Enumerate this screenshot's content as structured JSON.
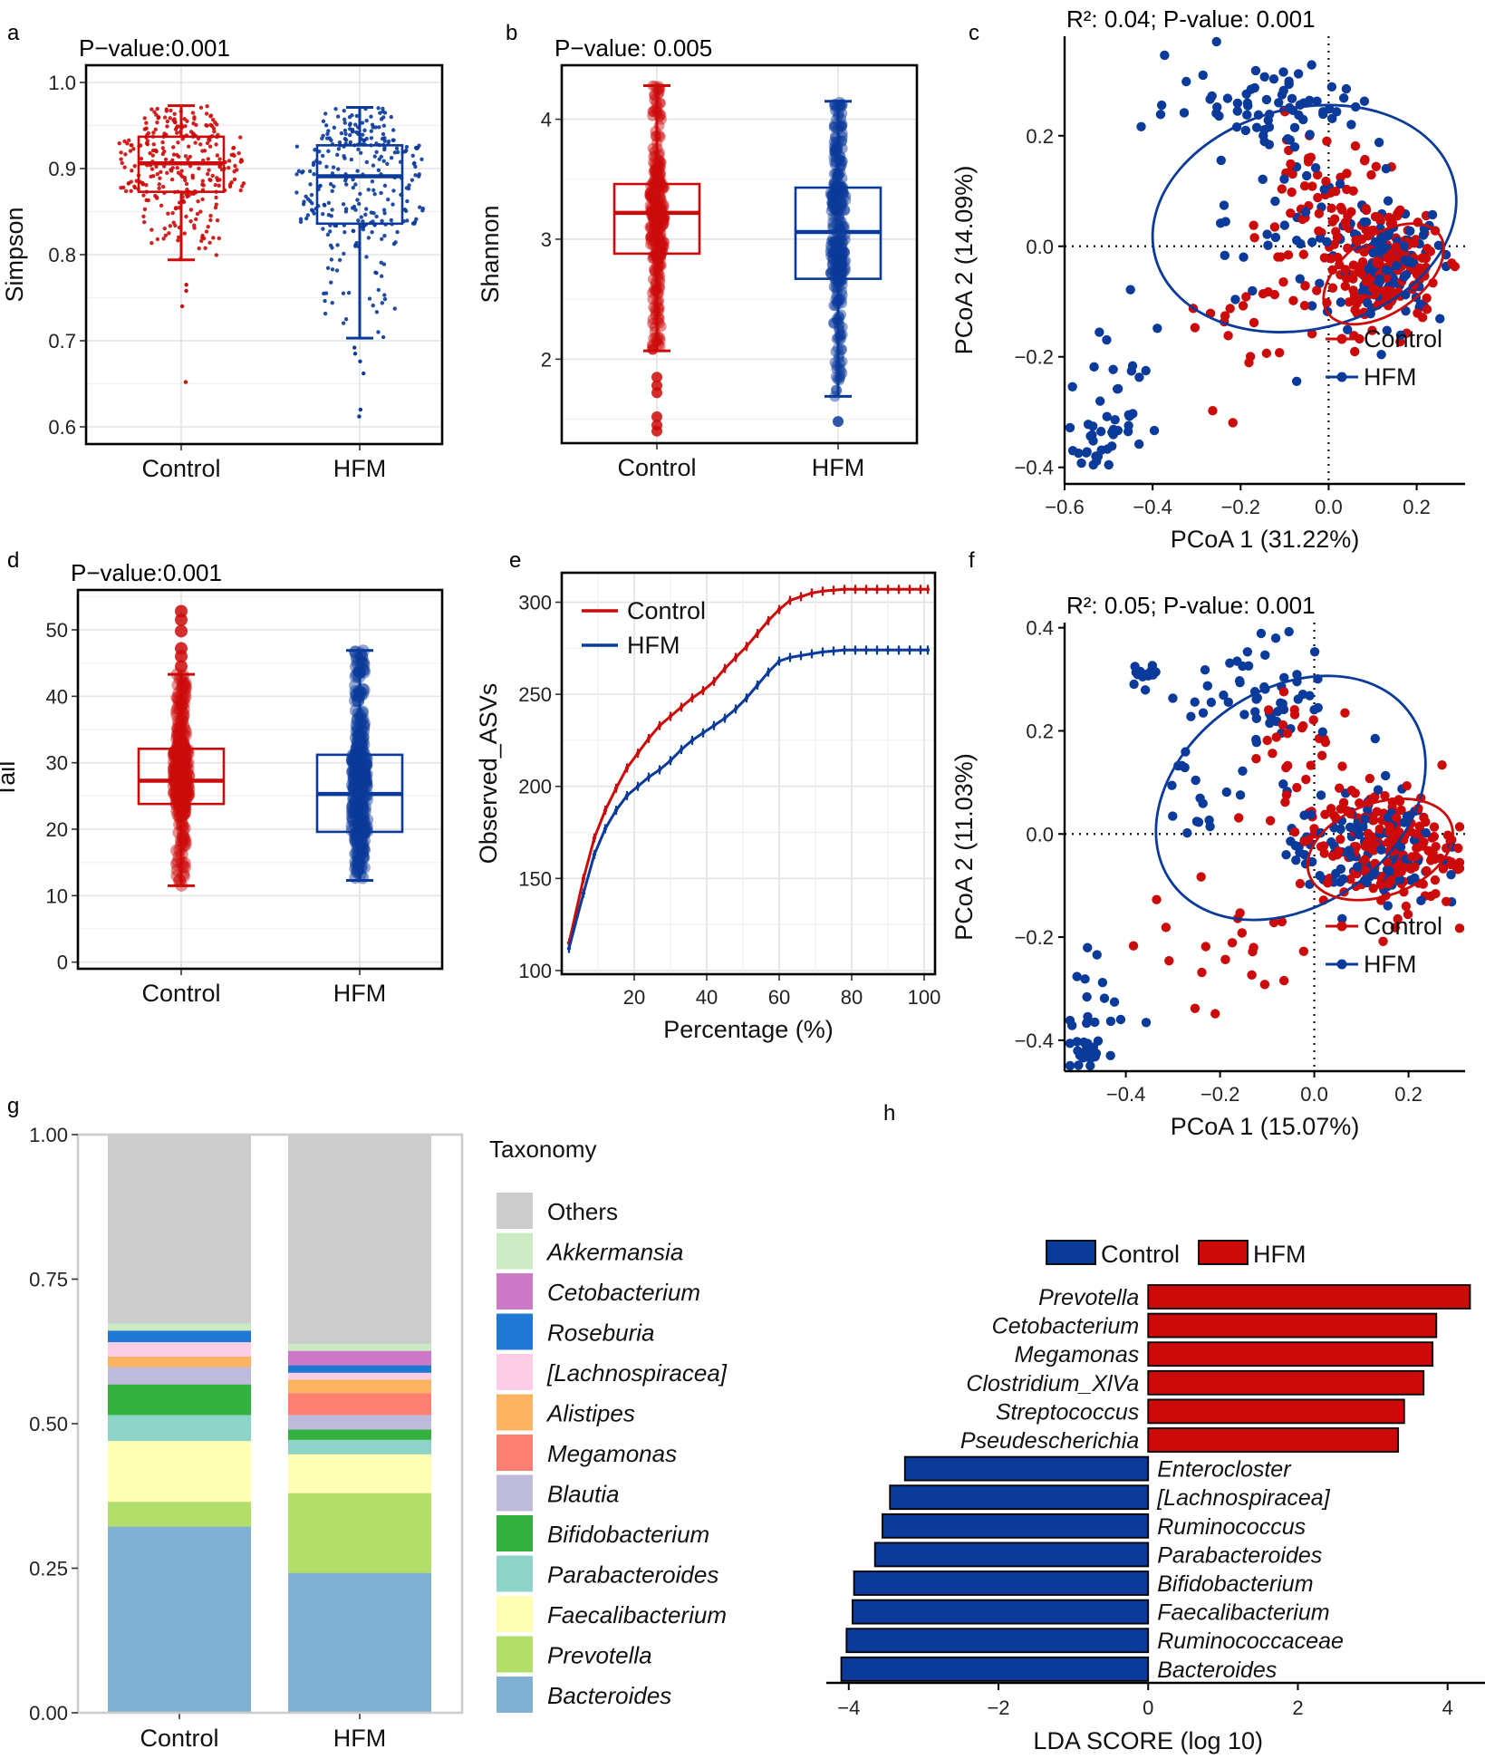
{
  "colors": {
    "control": "#cc0a0a",
    "hfm": "#0a3a9a",
    "others": "#cccccc"
  },
  "chart_data": [
    {
      "id": "a",
      "type": "box",
      "panel_label": "a",
      "title": "P−value:0.001",
      "xlabel": "",
      "ylabel": "Simpson",
      "categories": [
        "Control",
        "HFM"
      ],
      "ylim": [
        0.58,
        1.02
      ],
      "yticks": [
        0.6,
        0.7,
        0.8,
        0.9,
        1.0
      ],
      "ytick_labels": [
        "0.6",
        "0.7",
        "0.8",
        "0.9",
        "1.0"
      ],
      "series": [
        {
          "name": "Control",
          "whisker_low": 0.794,
          "q1": 0.873,
          "median": 0.906,
          "q3": 0.937,
          "whisker_high": 0.973,
          "range": [
            0.795,
            0.975
          ],
          "n": 300,
          "outliers": [
            0.765,
            0.758,
            0.74,
            0.652
          ],
          "point_r": 2.2
        },
        {
          "name": "HFM",
          "whisker_low": 0.703,
          "q1": 0.836,
          "median": 0.891,
          "q3": 0.927,
          "whisker_high": 0.971,
          "range": [
            0.703,
            0.972
          ],
          "n": 300,
          "outliers": [
            0.692,
            0.685,
            0.676,
            0.662,
            0.62,
            0.612
          ],
          "point_r": 2.2
        }
      ]
    },
    {
      "id": "b",
      "type": "box",
      "panel_label": "b",
      "title": "P−value: 0.005",
      "xlabel": "",
      "ylabel": "Shannon",
      "categories": [
        "Control",
        "HFM"
      ],
      "ylim": [
        1.3,
        4.45
      ],
      "yticks": [
        2,
        3,
        4
      ],
      "ytick_labels": [
        "2",
        "3",
        "4"
      ],
      "series": [
        {
          "name": "Control",
          "whisker_low": 2.07,
          "q1": 2.88,
          "median": 3.22,
          "q3": 3.46,
          "whisker_high": 4.28,
          "range": [
            2.07,
            4.28
          ],
          "n": 300,
          "outliers": [
            1.85,
            1.78,
            1.72,
            1.52,
            1.45,
            1.4
          ],
          "point_r": 6
        },
        {
          "name": "HFM",
          "whisker_low": 1.69,
          "q1": 2.67,
          "median": 3.06,
          "q3": 3.43,
          "whisker_high": 4.15,
          "range": [
            1.69,
            4.15
          ],
          "n": 300,
          "outliers": [
            1.48
          ],
          "point_r": 6
        }
      ]
    },
    {
      "id": "d",
      "type": "box",
      "panel_label": "d",
      "title": "P−value:0.001",
      "xlabel": "",
      "ylabel": "Tail",
      "categories": [
        "Control",
        "HFM"
      ],
      "ylim": [
        -1,
        56
      ],
      "yticks": [
        0,
        10,
        20,
        30,
        40,
        50
      ],
      "ytick_labels": [
        "0",
        "10",
        "20",
        "30",
        "40",
        "50"
      ],
      "series": [
        {
          "name": "Control",
          "whisker_low": 11.5,
          "q1": 23.8,
          "median": 27.3,
          "q3": 32.1,
          "whisker_high": 43.3,
          "range": [
            11.5,
            43.3
          ],
          "n": 300,
          "outliers": [
            44.5,
            46.0,
            47.2,
            49.8,
            51.5,
            52.8
          ],
          "point_r": 7
        },
        {
          "name": "HFM",
          "whisker_low": 12.3,
          "q1": 19.6,
          "median": 25.3,
          "q3": 31.2,
          "whisker_high": 46.9,
          "range": [
            12.3,
            46.9
          ],
          "n": 300,
          "outliers": [],
          "point_r": 7
        }
      ]
    },
    {
      "id": "c",
      "type": "scatter",
      "panel_label": "c",
      "title": "R²: 0.04; P-value: 0.001",
      "xlabel": "PCoA 1 (31.22%)",
      "ylabel": "PCoA 2 (14.09%)",
      "xlim": [
        -0.6,
        0.31
      ],
      "ylim": [
        -0.43,
        0.38
      ],
      "xticks": [
        -0.6,
        -0.4,
        -0.2,
        0.0,
        0.2
      ],
      "xtick_labels": [
        "−0.6",
        "−0.4",
        "−0.2",
        "0.0",
        "0.2"
      ],
      "yticks": [
        -0.4,
        -0.2,
        0.0,
        0.2
      ],
      "ytick_labels": [
        "−0.4",
        "−0.2",
        "0.0",
        "0.2"
      ],
      "legend": [
        "Control",
        "HFM"
      ],
      "legend_position": "bottom-right",
      "ellipses": [
        {
          "series": "HFM",
          "cx": -0.055,
          "cy": 0.05,
          "rx": 0.35,
          "ry": 0.2,
          "angle": -14
        },
        {
          "series": "Control",
          "cx": 0.125,
          "cy": -0.05,
          "rx": 0.155,
          "ry": 0.07,
          "angle": -35
        }
      ],
      "clusters": [
        {
          "series": "Control",
          "cx": 0.13,
          "cy": -0.04,
          "sx": 0.06,
          "sy": 0.05,
          "n": 160
        },
        {
          "series": "Control",
          "cx": -0.02,
          "cy": 0.06,
          "sx": 0.08,
          "sy": 0.07,
          "n": 70
        },
        {
          "series": "Control",
          "cx": -0.18,
          "cy": -0.15,
          "sx": 0.09,
          "sy": 0.09,
          "n": 25
        },
        {
          "series": "HFM",
          "cx": 0.14,
          "cy": -0.03,
          "sx": 0.06,
          "sy": 0.05,
          "n": 110
        },
        {
          "series": "HFM",
          "cx": -0.12,
          "cy": 0.26,
          "sx": 0.12,
          "sy": 0.04,
          "n": 70
        },
        {
          "series": "HFM",
          "cx": -0.08,
          "cy": 0.06,
          "sx": 0.1,
          "sy": 0.09,
          "n": 40
        },
        {
          "series": "HFM",
          "cx": -0.47,
          "cy": -0.27,
          "sx": 0.06,
          "sy": 0.07,
          "n": 30
        },
        {
          "series": "HFM",
          "cx": -0.53,
          "cy": -0.37,
          "sx": 0.03,
          "sy": 0.02,
          "n": 18
        }
      ]
    },
    {
      "id": "f",
      "type": "scatter",
      "panel_label": "f",
      "title": "R²: 0.05; P-value: 0.001",
      "xlabel": "PCoA 1 (15.07%)",
      "ylabel": "PCoA 2 (11.03%)",
      "xlim": [
        -0.53,
        0.32
      ],
      "ylim": [
        -0.46,
        0.41
      ],
      "xticks": [
        -0.4,
        -0.2,
        0.0,
        0.2
      ],
      "xtick_labels": [
        "−0.4",
        "−0.2",
        "0.0",
        "0.2"
      ],
      "yticks": [
        -0.4,
        -0.2,
        0.0,
        0.2,
        0.4
      ],
      "ytick_labels": [
        "−0.4",
        "−0.2",
        "0.0",
        "0.2",
        "0.4"
      ],
      "legend": [
        "Control",
        "HFM"
      ],
      "legend_position": "bottom-right",
      "ellipses": [
        {
          "series": "HFM",
          "cx": -0.05,
          "cy": 0.07,
          "rx": 0.31,
          "ry": 0.21,
          "angle": -35
        },
        {
          "series": "Control",
          "cx": 0.14,
          "cy": -0.03,
          "rx": 0.16,
          "ry": 0.09,
          "angle": -20
        }
      ],
      "clusters": [
        {
          "series": "Control",
          "cx": 0.16,
          "cy": -0.03,
          "sx": 0.07,
          "sy": 0.06,
          "n": 190
        },
        {
          "series": "Control",
          "cx": -0.04,
          "cy": 0.12,
          "sx": 0.06,
          "sy": 0.1,
          "n": 40
        },
        {
          "series": "Control",
          "cx": -0.18,
          "cy": -0.21,
          "sx": 0.09,
          "sy": 0.06,
          "n": 22
        },
        {
          "series": "HFM",
          "cx": 0.1,
          "cy": -0.03,
          "sx": 0.08,
          "sy": 0.06,
          "n": 120
        },
        {
          "series": "HFM",
          "cx": -0.1,
          "cy": 0.28,
          "sx": 0.07,
          "sy": 0.05,
          "n": 50
        },
        {
          "series": "HFM",
          "cx": -0.36,
          "cy": 0.31,
          "sx": 0.015,
          "sy": 0.01,
          "n": 20
        },
        {
          "series": "HFM",
          "cx": -0.24,
          "cy": 0.12,
          "sx": 0.05,
          "sy": 0.08,
          "n": 20
        },
        {
          "series": "HFM",
          "cx": -0.46,
          "cy": -0.35,
          "sx": 0.04,
          "sy": 0.06,
          "n": 25
        },
        {
          "series": "HFM",
          "cx": -0.48,
          "cy": -0.42,
          "sx": 0.02,
          "sy": 0.01,
          "n": 15
        }
      ]
    },
    {
      "id": "e",
      "type": "line",
      "panel_label": "e",
      "title": "",
      "xlabel": "Percentage (%)",
      "ylabel": "Observed_ASVs",
      "xlim": [
        0,
        103
      ],
      "ylim": [
        98,
        316
      ],
      "xticks": [
        20,
        40,
        60,
        80,
        100
      ],
      "xtick_labels": [
        "20",
        "40",
        "60",
        "80",
        "100"
      ],
      "yticks": [
        100,
        150,
        200,
        250,
        300
      ],
      "ytick_labels": [
        "100",
        "150",
        "200",
        "250",
        "300"
      ],
      "legend": [
        "Control",
        "HFM"
      ],
      "legend_position": "top-left",
      "x": [
        2,
        6,
        9,
        12,
        15,
        18,
        21,
        24,
        27,
        30,
        33,
        36,
        39,
        42,
        45,
        48,
        51,
        54,
        57,
        60,
        63,
        66,
        69,
        72,
        75,
        78,
        81,
        84,
        87,
        90,
        93,
        96,
        99,
        101
      ],
      "series": [
        {
          "name": "Control",
          "values": [
            115,
            150,
            172,
            187,
            199,
            210,
            218,
            226,
            233,
            238,
            243,
            248,
            252,
            257,
            264,
            270,
            276,
            283,
            290,
            296,
            301,
            303,
            305,
            306,
            306.5,
            307,
            307,
            307,
            307,
            307,
            307,
            307,
            307,
            307
          ]
        },
        {
          "name": "HFM",
          "values": [
            112,
            142,
            163,
            177,
            187,
            195,
            200,
            205,
            209,
            214,
            220,
            225,
            229,
            233,
            237,
            242,
            248,
            255,
            262,
            268,
            270,
            271,
            272,
            273,
            273.5,
            274,
            274,
            274,
            274,
            274,
            274,
            274,
            274,
            274
          ]
        }
      ]
    },
    {
      "id": "g",
      "type": "bar",
      "stacked": true,
      "panel_label": "g",
      "title": "",
      "xlabel": "",
      "ylabel": "",
      "categories": [
        "Control",
        "HFM"
      ],
      "ylim": [
        0,
        1.0
      ],
      "yticks": [
        0,
        0.25,
        0.5,
        0.75,
        1.0
      ],
      "ytick_labels": [
        "0.00",
        "0.25",
        "0.50",
        "0.75",
        "1.00"
      ],
      "legend_title": "Taxonomy",
      "series": [
        {
          "name": "Bacteroides",
          "color": "#80b1d3",
          "values": [
            0.322,
            0.242
          ]
        },
        {
          "name": "Prevotella",
          "color": "#b3de69",
          "values": [
            0.043,
            0.138
          ]
        },
        {
          "name": "Faecalibacterium",
          "color": "#ffffb3",
          "values": [
            0.105,
            0.067
          ]
        },
        {
          "name": "Parabacteroides",
          "color": "#8dd3c7",
          "values": [
            0.045,
            0.025
          ]
        },
        {
          "name": "Bifidobacterium",
          "color": "#33b040",
          "values": [
            0.053,
            0.018
          ]
        },
        {
          "name": "Blautia",
          "color": "#bebada",
          "values": [
            0.03,
            0.025
          ]
        },
        {
          "name": "Megamonas",
          "color": "#fb8072",
          "values": [
            0.0,
            0.038
          ]
        },
        {
          "name": "Alistipes",
          "color": "#fdb462",
          "values": [
            0.018,
            0.023
          ]
        },
        {
          "name": "[Lachnospiracea]",
          "color": "#fccde5",
          "values": [
            0.025,
            0.012
          ]
        },
        {
          "name": "Roseburia",
          "color": "#1f78d4",
          "values": [
            0.02,
            0.013
          ]
        },
        {
          "name": "Cetobacterium",
          "color": "#cc79c8",
          "values": [
            0.0,
            0.025
          ]
        },
        {
          "name": "Akkermansia",
          "color": "#ccebc5",
          "values": [
            0.012,
            0.012
          ]
        },
        {
          "name": "Others",
          "color": "#cccccc",
          "values": [
            0.327,
            0.362
          ]
        }
      ]
    },
    {
      "id": "h",
      "type": "bar",
      "orientation": "horizontal",
      "panel_label": "h",
      "title": "",
      "xlabel": "LDA SCORE (log 10)",
      "ylabel": "",
      "xlim": [
        -4.3,
        4.5
      ],
      "xticks": [
        -4,
        -2,
        0,
        2,
        4
      ],
      "xtick_labels": [
        "−4",
        "−2",
        "0",
        "2",
        "4"
      ],
      "legend": [
        "Control",
        "HFM"
      ],
      "legend_colors": [
        "#0a3a9a",
        "#cc0a0a"
      ],
      "legend_position": "top",
      "bars": [
        {
          "label": "Prevotella",
          "value": 4.3,
          "group": "HFM"
        },
        {
          "label": "Cetobacterium",
          "value": 3.85,
          "group": "HFM"
        },
        {
          "label": "Megamonas",
          "value": 3.8,
          "group": "HFM"
        },
        {
          "label": "Clostridium_XlVa",
          "value": 3.68,
          "group": "HFM"
        },
        {
          "label": "Streptococcus",
          "value": 3.42,
          "group": "HFM"
        },
        {
          "label": "Pseudescherichia",
          "value": 3.34,
          "group": "HFM"
        },
        {
          "label": "Enterocloster",
          "value": -3.25,
          "group": "Control"
        },
        {
          "label": "[Lachnospiracea]",
          "value": -3.45,
          "group": "Control"
        },
        {
          "label": "Ruminococcus",
          "value": -3.55,
          "group": "Control"
        },
        {
          "label": "Parabacteroides",
          "value": -3.65,
          "group": "Control"
        },
        {
          "label": "Bifidobacterium",
          "value": -3.93,
          "group": "Control"
        },
        {
          "label": "Faecalibacterium",
          "value": -3.95,
          "group": "Control"
        },
        {
          "label": "Ruminococcaceae",
          "value": -4.03,
          "group": "Control"
        },
        {
          "label": "Bacteroides",
          "value": -4.1,
          "group": "Control"
        }
      ]
    }
  ]
}
